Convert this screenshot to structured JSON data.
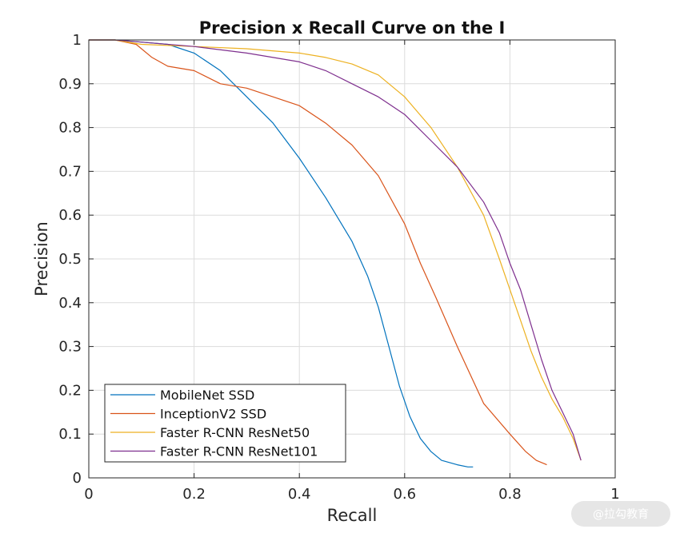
{
  "chart_data": {
    "type": "line",
    "title": "Precision x Recall Curve on the I",
    "xlabel": "Recall",
    "ylabel": "Precision",
    "xlim": [
      0,
      1
    ],
    "ylim": [
      0,
      1
    ],
    "xticks": [
      0,
      0.2,
      0.4,
      0.6,
      0.8,
      1
    ],
    "yticks": [
      0,
      0.1,
      0.2,
      0.3,
      0.4,
      0.5,
      0.6,
      0.7,
      0.8,
      0.9,
      1
    ],
    "xtick_labels": [
      "0",
      "0.2",
      "0.4",
      "0.6",
      "0.8",
      "1"
    ],
    "ytick_labels": [
      "0",
      "0.1",
      "0.2",
      "0.3",
      "0.4",
      "0.5",
      "0.6",
      "0.7",
      "0.8",
      "0.9",
      "1"
    ],
    "grid": true,
    "legend_position": "bottom-left",
    "series": [
      {
        "name": "MobileNet SSD",
        "color": "#0072bd",
        "x": [
          0,
          0.05,
          0.1,
          0.15,
          0.2,
          0.25,
          0.3,
          0.35,
          0.4,
          0.45,
          0.5,
          0.53,
          0.55,
          0.57,
          0.59,
          0.61,
          0.63,
          0.65,
          0.67,
          0.7,
          0.72,
          0.73
        ],
        "y": [
          1,
          1,
          0.995,
          0.99,
          0.97,
          0.93,
          0.87,
          0.81,
          0.73,
          0.64,
          0.54,
          0.46,
          0.39,
          0.3,
          0.21,
          0.14,
          0.09,
          0.06,
          0.04,
          0.03,
          0.025,
          0.025
        ]
      },
      {
        "name": "InceptionV2 SSD",
        "color": "#d95319",
        "x": [
          0,
          0.05,
          0.09,
          0.12,
          0.15,
          0.2,
          0.25,
          0.3,
          0.35,
          0.4,
          0.45,
          0.5,
          0.55,
          0.6,
          0.63,
          0.66,
          0.7,
          0.75,
          0.8,
          0.83,
          0.85,
          0.87
        ],
        "y": [
          1,
          1,
          0.99,
          0.96,
          0.94,
          0.93,
          0.9,
          0.89,
          0.87,
          0.85,
          0.81,
          0.76,
          0.69,
          0.58,
          0.49,
          0.41,
          0.3,
          0.17,
          0.1,
          0.06,
          0.04,
          0.03
        ]
      },
      {
        "name": "Faster R-CNN ResNet50",
        "color": "#edb120",
        "x": [
          0,
          0.05,
          0.1,
          0.2,
          0.3,
          0.4,
          0.45,
          0.5,
          0.55,
          0.6,
          0.65,
          0.7,
          0.75,
          0.78,
          0.8,
          0.82,
          0.84,
          0.86,
          0.88,
          0.9,
          0.92,
          0.935
        ],
        "y": [
          1,
          1,
          0.99,
          0.985,
          0.98,
          0.97,
          0.96,
          0.945,
          0.92,
          0.87,
          0.8,
          0.71,
          0.6,
          0.5,
          0.43,
          0.36,
          0.29,
          0.23,
          0.18,
          0.14,
          0.09,
          0.04
        ]
      },
      {
        "name": "Faster R-CNN ResNet101",
        "color": "#7e2f8e",
        "x": [
          0,
          0.05,
          0.1,
          0.2,
          0.3,
          0.4,
          0.45,
          0.5,
          0.55,
          0.6,
          0.65,
          0.7,
          0.75,
          0.78,
          0.8,
          0.82,
          0.84,
          0.86,
          0.88,
          0.9,
          0.92,
          0.935
        ],
        "y": [
          1,
          1,
          0.995,
          0.985,
          0.97,
          0.95,
          0.93,
          0.9,
          0.87,
          0.83,
          0.77,
          0.71,
          0.63,
          0.56,
          0.49,
          0.43,
          0.35,
          0.27,
          0.2,
          0.15,
          0.1,
          0.04
        ]
      }
    ]
  },
  "watermark": {
    "text": "@拉勾教育"
  }
}
